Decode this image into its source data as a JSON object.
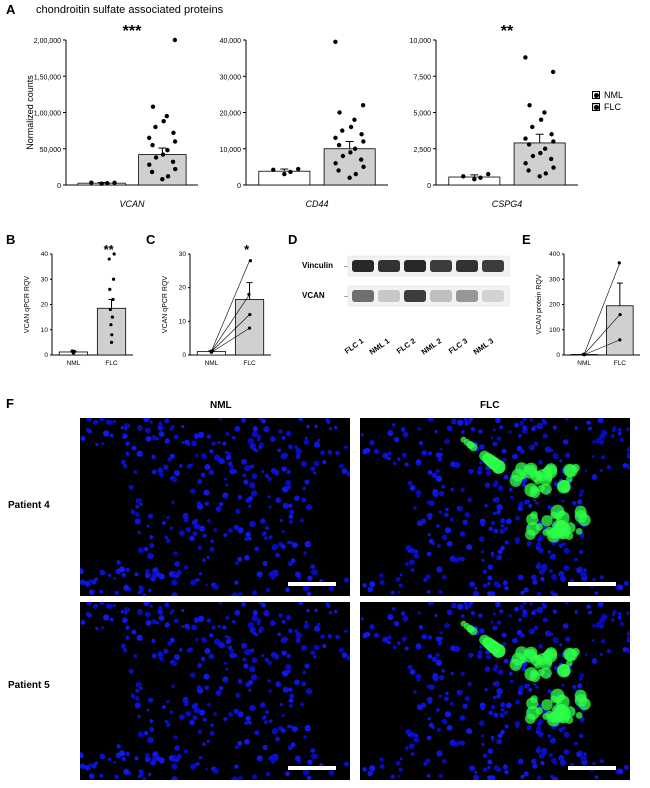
{
  "section_title": "chondroitin sulfate associated proteins",
  "legend": {
    "a": "NML",
    "b": "FLC"
  },
  "panelA": {
    "ylabel": "Normalized counts",
    "charts": [
      {
        "gene": "VCAN",
        "sig": "***",
        "ymax": 200000,
        "ytick_step": 50000,
        "ytick_labels": [
          "0",
          "50,000",
          "1,00,000",
          "1,50,000",
          "2,00,000"
        ],
        "bars": [
          {
            "label": "NML",
            "mean": 2500,
            "sem": 800,
            "fill": "#ffffff",
            "points": [
              1800,
              2400,
              3200,
              3000
            ]
          },
          {
            "label": "FLC",
            "mean": 42000,
            "sem": 9000,
            "fill": "#d0d0d0",
            "points": [
              8000,
              12000,
              18000,
              22000,
              28000,
              32000,
              38000,
              42000,
              48000,
              55000,
              60000,
              65000,
              72000,
              80000,
              88000,
              95000,
              108000,
              200000
            ]
          }
        ]
      },
      {
        "gene": "CD44",
        "sig": "",
        "ymax": 40000,
        "ytick_step": 10000,
        "ytick_labels": [
          "0",
          "10,000",
          "20,000",
          "30,000",
          "40,000"
        ],
        "bars": [
          {
            "label": "NML",
            "mean": 3800,
            "sem": 600,
            "fill": "#ffffff",
            "points": [
              3000,
              3600,
              4200,
              4400
            ]
          },
          {
            "label": "FLC",
            "mean": 10000,
            "sem": 2000,
            "fill": "#d0d0d0",
            "points": [
              2000,
              3000,
              4000,
              5000,
              6000,
              7000,
              8000,
              9000,
              10000,
              11000,
              12000,
              13000,
              14000,
              15000,
              16000,
              18000,
              20000,
              22000,
              39500
            ]
          }
        ]
      },
      {
        "gene": "CSPG4",
        "sig": "**",
        "ymax": 10000,
        "ytick_step": 2500,
        "ytick_labels": [
          "0",
          "2,500",
          "5,000",
          "7,500",
          "10,000"
        ],
        "bars": [
          {
            "label": "NML",
            "mean": 550,
            "sem": 150,
            "fill": "#ffffff",
            "points": [
              400,
              500,
              600,
              750
            ]
          },
          {
            "label": "FLC",
            "mean": 2900,
            "sem": 600,
            "fill": "#d0d0d0",
            "points": [
              600,
              800,
              1000,
              1200,
              1500,
              1800,
              2000,
              2200,
              2500,
              2800,
              3000,
              3200,
              3500,
              4000,
              4500,
              5000,
              5500,
              7800,
              8800
            ]
          }
        ]
      }
    ]
  },
  "panelB": {
    "ylabel": "VCAN qPCR RQV",
    "sig": "**",
    "ymax": 40,
    "ytick_step": 10,
    "bars": [
      {
        "label": "NML",
        "mean": 1.2,
        "sem": 0.3,
        "fill": "#ffffff",
        "points": [
          0.8,
          1.0,
          1.2,
          1.4,
          1.6
        ]
      },
      {
        "label": "FLC",
        "mean": 18.5,
        "sem": 3.5,
        "fill": "#d0d0d0",
        "points": [
          5,
          8,
          12,
          15,
          18,
          22,
          26,
          30,
          38,
          40
        ]
      }
    ]
  },
  "panelC": {
    "ylabel": "VCAN qPCR RQV",
    "sig": "*",
    "ymax": 30,
    "ytick_step": 10,
    "paired": true,
    "bars": [
      {
        "label": "NML",
        "mean": 1.0,
        "sem": 0.2,
        "fill": "#ffffff",
        "points": [
          0.8,
          1.0,
          1.1,
          1.2
        ]
      },
      {
        "label": "FLC",
        "mean": 16.5,
        "sem": 5.0,
        "fill": "#d0d0d0",
        "points": [
          8,
          12,
          18,
          28
        ]
      }
    ]
  },
  "panelD": {
    "rows": [
      {
        "label": "Vinculin",
        "intensities": [
          0.95,
          0.9,
          0.95,
          0.85,
          0.9,
          0.85
        ]
      },
      {
        "label": "VCAN",
        "intensities": [
          0.6,
          0.15,
          0.85,
          0.2,
          0.4,
          0.1
        ]
      }
    ],
    "lanes": [
      "FLC 1",
      "NML 1",
      "FLC 2",
      "NML 2",
      "FLC 3",
      "NML 3"
    ]
  },
  "panelE": {
    "ylabel": "VCAN protein RQV",
    "sig": "",
    "ymax": 400,
    "ytick_step": 100,
    "paired": true,
    "bars": [
      {
        "label": "NML",
        "mean": 2,
        "sem": 1,
        "fill": "#ffffff",
        "points": [
          1,
          2,
          3
        ]
      },
      {
        "label": "FLC",
        "mean": 195,
        "sem": 90,
        "fill": "#d0d0d0",
        "points": [
          60,
          160,
          365
        ]
      }
    ]
  },
  "panelF": {
    "col_labels": [
      "NML",
      "FLC"
    ],
    "row_labels": [
      "Patient 4",
      "Patient 5"
    ],
    "nucleus_color": "#1a2fd8",
    "signal_color": "#2dff4a",
    "bg_color": "#000000",
    "scalebar_color": "#ffffff"
  },
  "colors": {
    "axis": "#000000",
    "grid": "#cccccc",
    "bar_nml": "#ffffff",
    "bar_flc": "#d0d0d0",
    "point": "#000000"
  }
}
